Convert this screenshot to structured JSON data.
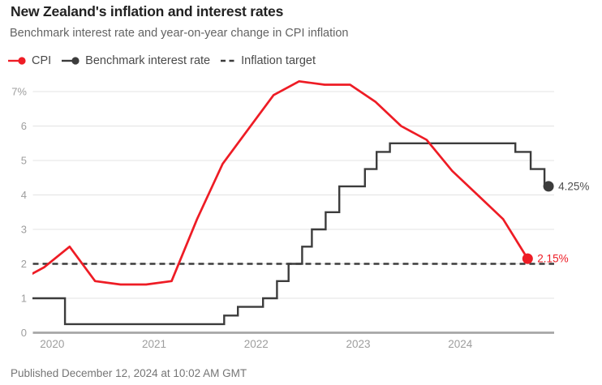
{
  "page": {
    "title": "New Zealand's inflation and interest rates",
    "subtitle": "Benchmark interest rate and year-on-year change in CPI inflation",
    "footer": "Published December 12, 2024 at 10:02 AM GMT"
  },
  "legend": {
    "items": [
      {
        "label": "CPI",
        "swatch": "line-dot",
        "color": "#ee1c25"
      },
      {
        "label": "Benchmark interest rate",
        "swatch": "line-dot",
        "color": "#3c3c3c"
      },
      {
        "label": "Inflation target",
        "swatch": "dashed",
        "color": "#3c3c3c"
      }
    ]
  },
  "chart_data": {
    "type": "line",
    "title": "New Zealand's inflation and interest rates",
    "subtitle": "Benchmark interest rate and year-on-year change in CPI inflation",
    "unit": "percent",
    "x_axis": {
      "tick_labels": [
        "2020",
        "2021",
        "2022",
        "2023",
        "2024"
      ],
      "domain_years": [
        2019.89,
        2025.0
      ],
      "grid": false
    },
    "y_axis": {
      "min": 0,
      "max": 7,
      "tick_labels": [
        "0",
        "1",
        "2",
        "3",
        "4",
        "5",
        "6",
        "7%"
      ],
      "grid": true
    },
    "target_line": {
      "label": "Inflation target",
      "value": 2
    },
    "legend_position": "top",
    "series": [
      {
        "name": "CPI",
        "style": "line",
        "color": "#ee1c25",
        "end_label": "2.15%",
        "points_year_value": [
          [
            2019.75,
            1.5
          ],
          [
            2020.0,
            1.9
          ],
          [
            2020.25,
            2.5
          ],
          [
            2020.5,
            1.5
          ],
          [
            2020.75,
            1.4
          ],
          [
            2021.0,
            1.4
          ],
          [
            2021.25,
            1.5
          ],
          [
            2021.5,
            3.3
          ],
          [
            2021.75,
            4.9
          ],
          [
            2022.0,
            5.9
          ],
          [
            2022.25,
            6.9
          ],
          [
            2022.5,
            7.3
          ],
          [
            2022.75,
            7.2
          ],
          [
            2023.0,
            7.2
          ],
          [
            2023.25,
            6.7
          ],
          [
            2023.5,
            6.0
          ],
          [
            2023.75,
            5.6
          ],
          [
            2024.0,
            4.7
          ],
          [
            2024.25,
            4.0
          ],
          [
            2024.5,
            3.3
          ],
          [
            2024.74,
            2.15
          ]
        ]
      },
      {
        "name": "Benchmark interest rate",
        "style": "step",
        "color": "#3c3c3c",
        "end_label": "4.25%",
        "end_year": 2024.945,
        "points_year_value": [
          [
            2019.75,
            1.0
          ],
          [
            2020.205,
            0.25
          ],
          [
            2021.765,
            0.5
          ],
          [
            2021.9,
            0.75
          ],
          [
            2022.146,
            1.0
          ],
          [
            2022.283,
            1.5
          ],
          [
            2022.397,
            2.0
          ],
          [
            2022.53,
            2.5
          ],
          [
            2022.625,
            3.0
          ],
          [
            2022.76,
            3.5
          ],
          [
            2022.894,
            4.25
          ],
          [
            2023.145,
            4.75
          ],
          [
            2023.26,
            5.25
          ],
          [
            2023.39,
            5.5
          ],
          [
            2024.62,
            5.25
          ],
          [
            2024.77,
            4.75
          ],
          [
            2024.905,
            4.25
          ]
        ]
      }
    ],
    "colors": {
      "cpi": "#ee1c25",
      "benchmark": "#3c3c3c",
      "grid": "#e3e3e3",
      "axis": "#a6a6a6",
      "tick_text": "#9e9e9e",
      "end_label_dark": "#4d4d4d"
    }
  }
}
